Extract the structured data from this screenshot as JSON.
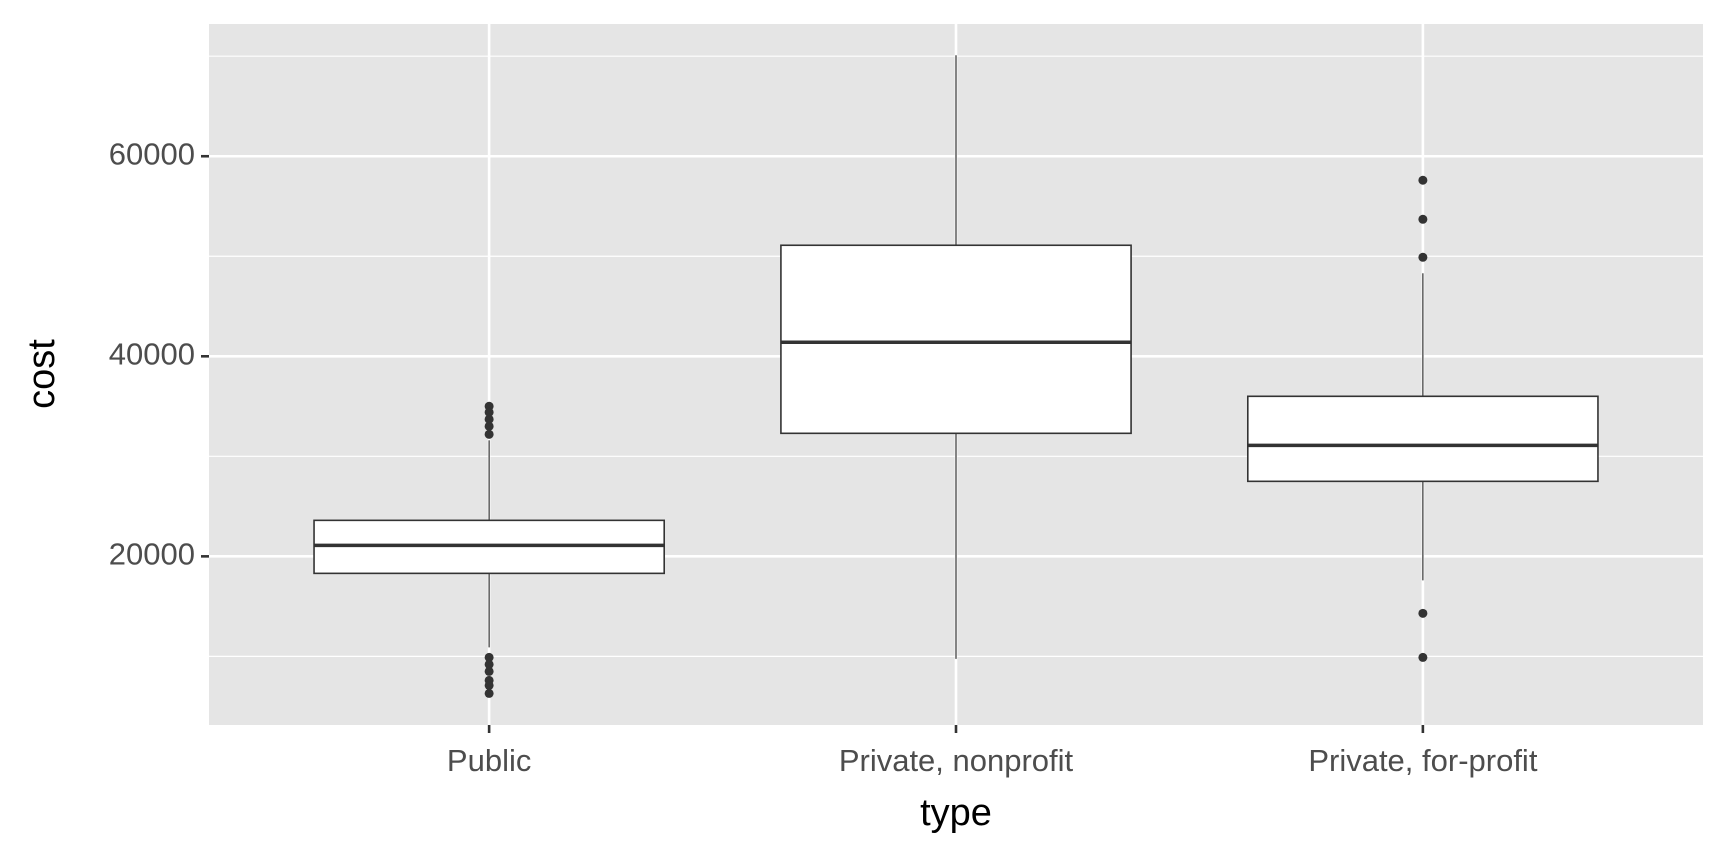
{
  "chart_data": {
    "type": "box",
    "x_label": "type",
    "y_label": "cost",
    "categories": [
      "Public",
      "Private, nonprofit",
      "Private, for-profit"
    ],
    "boxes": [
      {
        "whisker_low": 10900,
        "q1": 18300,
        "median": 21100,
        "q3": 23600,
        "whisker_high": 31600,
        "outliers": [
          35000,
          34400,
          33700,
          33000,
          32200,
          9900,
          9200,
          8500,
          7600,
          7100,
          6300
        ]
      },
      {
        "whisker_low": 9750,
        "q1": 32300,
        "median": 41400,
        "q3": 51100,
        "whisker_high": 70100,
        "outliers": []
      },
      {
        "whisker_low": 17600,
        "q1": 27500,
        "median": 31100,
        "q3": 36000,
        "whisker_high": 48300,
        "outliers": [
          57600,
          53700,
          49900,
          14300,
          9900
        ]
      }
    ],
    "ylim": [
      3140,
      73220
    ],
    "yticks": [
      20000,
      40000,
      60000
    ],
    "yminor": [
      10000,
      30000,
      50000,
      70000
    ],
    "grid": true,
    "color": "#ffffff",
    "line_color": "#333333",
    "panel_color": "#e5e5e5"
  }
}
